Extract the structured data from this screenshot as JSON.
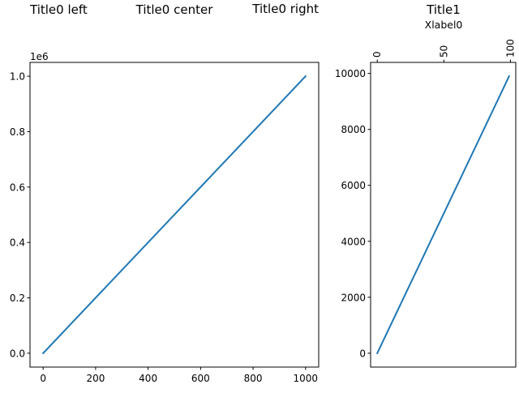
{
  "chart_data": [
    {
      "type": "line",
      "titles": {
        "left": "Title0 left",
        "center": "Title0 center",
        "right": "Title0 right"
      },
      "xlabel": "",
      "ylabel": "",
      "y_offset_label": "1e6",
      "xlim": [
        -50,
        1050
      ],
      "ylim": [
        -0.05,
        1.05
      ],
      "x_ticks": [
        0,
        200,
        400,
        600,
        800,
        1000
      ],
      "x_tick_labels": [
        "0",
        "200",
        "400",
        "600",
        "800",
        "1000"
      ],
      "y_ticks": [
        0.0,
        0.2,
        0.4,
        0.6,
        0.8,
        1.0
      ],
      "y_tick_labels": [
        "0.0",
        "0.2",
        "0.4",
        "0.6",
        "0.8",
        "1.0"
      ],
      "series": [
        {
          "x": [
            0,
            1000
          ],
          "y": [
            0.0,
            1.0
          ],
          "color": "#1f77b4"
        }
      ],
      "grid": false
    },
    {
      "type": "line",
      "title": "Title1",
      "xlabel": "Xlabel0",
      "xlabel_position": "top",
      "xlim": [
        -5,
        104
      ],
      "ylim": [
        -495,
        10395
      ],
      "x_ticks": [
        0,
        50,
        100
      ],
      "x_tick_labels": [
        "0",
        "50",
        "100"
      ],
      "x_tick_label_rotation": 90,
      "y_ticks": [
        0,
        2000,
        4000,
        6000,
        8000,
        10000
      ],
      "y_tick_labels": [
        "0",
        "2000",
        "4000",
        "6000",
        "8000",
        "10000"
      ],
      "series": [
        {
          "x": [
            0,
            99
          ],
          "y": [
            0,
            9900
          ],
          "color": "#1f77b4"
        }
      ],
      "grid": false
    }
  ]
}
